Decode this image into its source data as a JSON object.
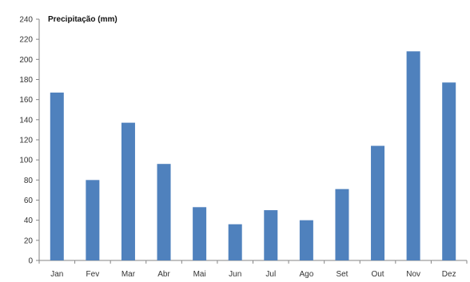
{
  "chart_data": {
    "type": "bar",
    "title": "Precipitação (mm)",
    "xlabel": "",
    "ylabel": "",
    "categories": [
      "Jan",
      "Fev",
      "Mar",
      "Abr",
      "Mai",
      "Jun",
      "Jul",
      "Ago",
      "Set",
      "Out",
      "Nov",
      "Dez"
    ],
    "values": [
      167,
      80,
      137,
      96,
      53,
      36,
      50,
      40,
      71,
      114,
      208,
      177
    ],
    "ylim": [
      0,
      240
    ],
    "yticks": [
      0,
      20,
      40,
      60,
      80,
      100,
      120,
      140,
      160,
      180,
      200,
      220,
      240
    ],
    "grid": false,
    "legend": "none",
    "bar_color": "#4F81BD"
  }
}
